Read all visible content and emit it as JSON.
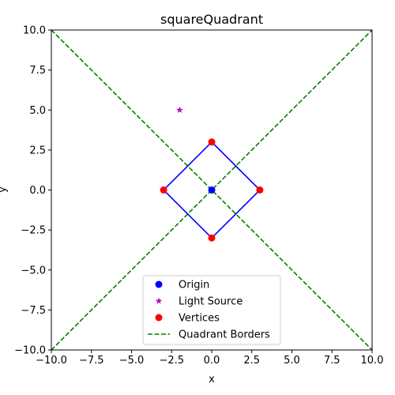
{
  "chart_data": {
    "type": "scatter",
    "title": "squareQuadrant",
    "xlabel": "x",
    "ylabel": "y",
    "xlim": [
      -10,
      10
    ],
    "ylim": [
      -10,
      10
    ],
    "xticks": [
      "−10.0",
      "−7.5",
      "−5.0",
      "−2.5",
      "0.0",
      "2.5",
      "5.0",
      "7.5",
      "10.0"
    ],
    "xtick_values": [
      -10,
      -7.5,
      -5,
      -2.5,
      0,
      2.5,
      5,
      7.5,
      10
    ],
    "yticks": [
      "−10.0",
      "−7.5",
      "−5.0",
      "−2.5",
      "0.0",
      "2.5",
      "5.0",
      "7.5",
      "10.0"
    ],
    "ytick_values": [
      -10,
      -7.5,
      -5,
      -2.5,
      0,
      2.5,
      5,
      7.5,
      10
    ],
    "grid": false,
    "legend_position": "lower center",
    "colors": {
      "origin": "#0000ff",
      "light_source": "#bf00bf",
      "vertices": "#ff0000",
      "square": "#0000ff",
      "quadrant_borders": "#008000"
    },
    "origin": {
      "x": 0,
      "y": 0
    },
    "light_source": {
      "x": -2,
      "y": 5
    },
    "vertices": [
      {
        "x": 0,
        "y": 3
      },
      {
        "x": 3,
        "y": 0
      },
      {
        "x": 0,
        "y": -3
      },
      {
        "x": -3,
        "y": 0
      }
    ],
    "quadrant_borders": [
      {
        "x": [
          -10,
          10
        ],
        "y": [
          -10,
          10
        ]
      },
      {
        "x": [
          -10,
          10
        ],
        "y": [
          10,
          -10
        ]
      }
    ],
    "legend": [
      {
        "label": "Origin",
        "marker": "circle",
        "color": "#0000ff"
      },
      {
        "label": "Light Source",
        "marker": "star",
        "color": "#bf00bf"
      },
      {
        "label": "Vertices",
        "marker": "circle",
        "color": "#ff0000"
      },
      {
        "label": "Quadrant Borders",
        "marker": "dashed-line",
        "color": "#008000"
      }
    ]
  }
}
